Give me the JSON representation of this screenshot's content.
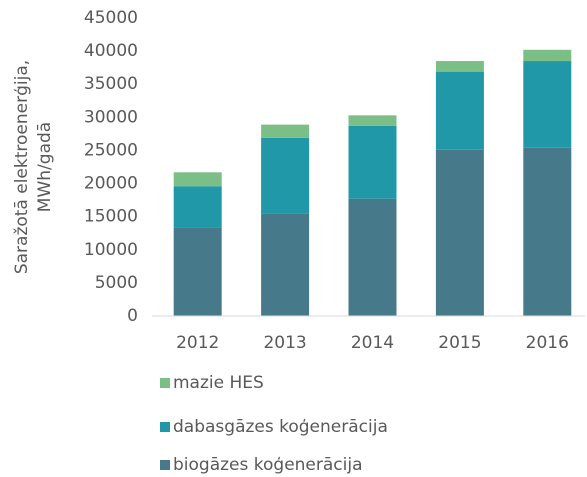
{
  "chart_data": {
    "type": "stacked_bar",
    "ylabel": [
      "Saražotā elektroenerģija,",
      "MWh/gadā"
    ],
    "categories": [
      "2012",
      "2013",
      "2014",
      "2015",
      "2016"
    ],
    "series": [
      {
        "name": "biogāzes koģenerācija",
        "color": "#467a8b",
        "values": [
          13300,
          15500,
          17700,
          25100,
          25400
        ]
      },
      {
        "name": "dabasgāzes koģenerācija",
        "color": "#2198a8",
        "values": [
          6300,
          11400,
          11000,
          11800,
          13100
        ]
      },
      {
        "name": "mazie HES",
        "color": "#7bbf87",
        "values": [
          2100,
          2000,
          1600,
          1600,
          1700
        ]
      }
    ],
    "ylim": [
      0,
      45000
    ],
    "yticks": [
      0,
      5000,
      10000,
      15000,
      20000,
      25000,
      30000,
      35000,
      40000,
      45000
    ],
    "grid": false,
    "legend": "bottom"
  }
}
